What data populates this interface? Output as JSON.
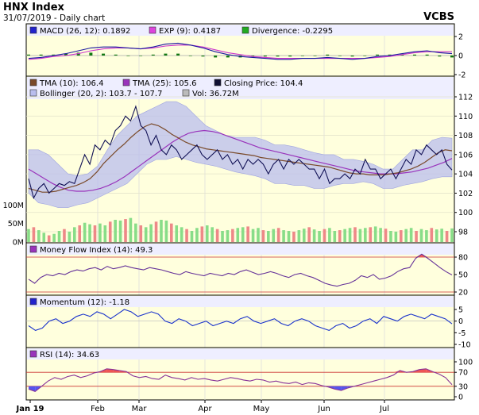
{
  "header": {
    "title": "HNX Index",
    "subtitle": "31/07/2019 - Daily chart",
    "brand": "VCBS"
  },
  "colors": {
    "panel_bg": "#ffffdd",
    "legend_bg": "#eeeeff",
    "macd": "#1a1aa0",
    "macd_signal": "#cc33cc",
    "divergence": "#117711",
    "tma10": "#7a4a2a",
    "tma25": "#9933bb",
    "close": "#111155",
    "bollinger_band": "#b9bdee",
    "vol_up": "#88dd88",
    "vol_down": "#ee8888",
    "mfi": "#663399",
    "momentum": "#1a33cc",
    "rsi": "#883399",
    "overbought_fill": "#ee5555",
    "oversold_fill": "#5555ee",
    "level_line": "#cc3333"
  },
  "x_axis_labels": [
    "Jan 19",
    "Feb",
    "Mar",
    "Apr",
    "May",
    "Jun",
    "Jul"
  ],
  "chart_data": [
    {
      "type": "line",
      "panel": "MACD",
      "legend": [
        {
          "label": "MACD (26, 12): 0.1892",
          "icon": "blue-square"
        },
        {
          "label": "EXP (9): 0.4187",
          "icon": "magenta-square"
        },
        {
          "label": "Divergence: -0.2295",
          "icon": "green-square"
        }
      ],
      "ylim": [
        -2,
        2
      ],
      "yticks": [
        "2",
        "0",
        "-2"
      ],
      "series": [
        {
          "name": "MACD (26, 12)",
          "values": [
            -0.3,
            -0.2,
            0.0,
            0.2,
            0.5,
            0.8,
            0.9,
            0.9,
            0.8,
            0.7,
            0.9,
            1.2,
            1.3,
            1.1,
            0.8,
            0.4,
            0.1,
            -0.1,
            -0.2,
            -0.3,
            -0.4,
            -0.4,
            -0.3,
            -0.3,
            -0.2,
            -0.3,
            -0.4,
            -0.3,
            -0.1,
            0.0,
            0.2,
            0.4,
            0.5,
            0.3,
            0.2
          ]
        },
        {
          "name": "EXP (9)",
          "values": [
            -0.4,
            -0.3,
            -0.1,
            0.0,
            0.2,
            0.5,
            0.7,
            0.8,
            0.8,
            0.7,
            0.8,
            1.0,
            1.1,
            1.1,
            0.9,
            0.6,
            0.3,
            0.1,
            -0.1,
            -0.2,
            -0.3,
            -0.3,
            -0.3,
            -0.3,
            -0.3,
            -0.3,
            -0.3,
            -0.3,
            -0.2,
            -0.1,
            0.1,
            0.3,
            0.4,
            0.4,
            0.4
          ]
        },
        {
          "name": "Divergence",
          "values": [
            0.1,
            0.1,
            0.1,
            0.2,
            0.3,
            0.3,
            0.2,
            0.1,
            0.0,
            0.0,
            0.1,
            0.2,
            0.2,
            0.0,
            -0.1,
            -0.2,
            -0.2,
            -0.2,
            -0.1,
            -0.1,
            -0.1,
            -0.1,
            0.0,
            0.0,
            0.1,
            0.0,
            -0.1,
            0.0,
            0.1,
            0.1,
            0.1,
            0.1,
            0.1,
            -0.1,
            -0.2
          ]
        }
      ]
    },
    {
      "type": "line",
      "panel": "Price",
      "legend": [
        {
          "label": "TMA (10): 106.4",
          "icon": "brown-square"
        },
        {
          "label": "TMA (25): 105.6",
          "icon": "purple-square"
        },
        {
          "label": "Closing Price: 104.4",
          "icon": "navy-square"
        },
        {
          "label": "Bollinger (20, 2): 103.7 - 107.7",
          "icon": "lavender-square"
        },
        {
          "label": "Vol: 36.72M",
          "icon": "gray-square"
        }
      ],
      "ylim": [
        98,
        112
      ],
      "yticks": [
        "112",
        "110",
        "108",
        "106",
        "104",
        "102",
        "100",
        "98"
      ],
      "volume_ticks": [
        "100M",
        "50M",
        "0M"
      ],
      "volume_max_millions": 150,
      "series": [
        {
          "name": "Closing Price",
          "values": [
            103.5,
            101.5,
            102.5,
            103.0,
            102.0,
            102.5,
            103.0,
            102.8,
            103.2,
            103.0,
            104.5,
            106.0,
            105.0,
            107.0,
            106.5,
            107.5,
            107.0,
            108.5,
            109.0,
            110.0,
            109.5,
            111.0,
            109.0,
            108.5,
            107.0,
            108.0,
            106.5,
            106.0,
            107.0,
            106.5,
            105.5,
            106.0,
            106.5,
            107.0,
            106.0,
            105.5,
            106.0,
            106.5,
            105.5,
            106.0,
            105.0,
            105.5,
            104.5,
            105.5,
            105.0,
            105.5,
            105.0,
            104.0,
            105.0,
            105.5,
            104.5,
            105.5,
            105.0,
            105.5,
            105.0,
            104.5,
            104.5,
            103.5,
            104.5,
            103.0,
            103.5,
            103.5,
            104.0,
            103.5,
            104.5,
            104.0,
            105.5,
            104.5,
            104.5,
            103.5,
            104.0,
            104.5,
            103.5,
            104.5,
            105.5,
            105.0,
            106.5,
            106.0,
            107.0,
            106.5,
            106.0,
            106.5,
            105.0,
            104.4
          ]
        },
        {
          "name": "TMA (10)",
          "values": [
            102.5,
            102.3,
            102.1,
            102.1,
            102.2,
            102.4,
            102.6,
            102.8,
            103.1,
            103.5,
            104.2,
            105.1,
            105.8,
            106.5,
            107.1,
            107.8,
            108.4,
            108.9,
            109.2,
            109.0,
            108.6,
            108.1,
            107.7,
            107.3,
            107.0,
            106.8,
            106.6,
            106.5,
            106.4,
            106.3,
            106.2,
            106.1,
            106.0,
            105.9,
            105.7,
            105.6,
            105.5,
            105.4,
            105.3,
            105.2,
            105.1,
            105.0,
            104.9,
            104.8,
            104.7,
            104.5,
            104.3,
            104.1,
            104.0,
            104.0,
            103.9,
            103.9,
            103.9,
            104.0,
            104.1,
            104.3,
            104.5,
            104.8,
            105.2,
            105.7,
            106.2,
            106.5,
            106.4
          ]
        },
        {
          "name": "TMA (25)",
          "values": [
            104.5,
            104.0,
            103.5,
            103.0,
            102.6,
            102.3,
            102.2,
            102.2,
            102.3,
            102.5,
            102.8,
            103.2,
            103.7,
            104.3,
            104.9,
            105.5,
            106.1,
            106.7,
            107.3,
            107.8,
            108.2,
            108.4,
            108.5,
            108.4,
            108.2,
            107.9,
            107.6,
            107.3,
            107.0,
            106.7,
            106.5,
            106.3,
            106.1,
            105.9,
            105.7,
            105.5,
            105.3,
            105.1,
            104.9,
            104.7,
            104.5,
            104.3,
            104.2,
            104.1,
            104.0,
            104.0,
            104.0,
            104.1,
            104.2,
            104.4,
            104.6,
            104.9,
            105.2,
            105.6
          ]
        },
        {
          "name": "Bollinger (20, 2)",
          "upper": [
            106.5,
            106.5,
            106.0,
            105.0,
            104.0,
            103.8,
            104.0,
            104.8,
            106.5,
            108.0,
            109.0,
            110.0,
            110.5,
            111.0,
            111.5,
            111.5,
            111.0,
            110.0,
            109.0,
            108.5,
            108.0,
            107.8,
            107.8,
            107.8,
            107.5,
            107.0,
            107.0,
            106.8,
            106.5,
            106.2,
            106.0,
            106.0,
            105.5,
            105.5,
            105.3,
            105.0,
            104.5,
            104.5,
            105.5,
            106.5,
            106.5,
            107.5,
            107.8,
            107.7
          ],
          "lower": [
            102.0,
            101.0,
            100.8,
            100.5,
            100.5,
            100.8,
            101.0,
            101.5,
            102.0,
            102.5,
            103.0,
            104.0,
            105.0,
            105.5,
            105.5,
            105.8,
            105.5,
            105.2,
            105.0,
            104.8,
            104.5,
            104.2,
            104.0,
            103.8,
            103.5,
            103.0,
            103.0,
            102.8,
            102.8,
            102.5,
            102.5,
            102.8,
            103.0,
            103.0,
            103.2,
            103.0,
            102.5,
            102.5,
            102.8,
            103.0,
            103.2,
            103.5,
            103.7,
            103.7
          ]
        },
        {
          "name": "Vol",
          "values": [
            35,
            40,
            32,
            25,
            18,
            22,
            30,
            35,
            28,
            40,
            45,
            52,
            48,
            45,
            50,
            45,
            55,
            60,
            58,
            62,
            65,
            50,
            45,
            40,
            48,
            55,
            60,
            58,
            50,
            45,
            40,
            35,
            30,
            38,
            42,
            45,
            40,
            35,
            30,
            32,
            35,
            38,
            40,
            42,
            35,
            38,
            32,
            30,
            35,
            38,
            32,
            30,
            28,
            32,
            36,
            40,
            34,
            30,
            35,
            38,
            30,
            32,
            35,
            38,
            40,
            35,
            38,
            40,
            42,
            38,
            36,
            30,
            28,
            32,
            35,
            38,
            30,
            35,
            32,
            38,
            34,
            36,
            30,
            36.72
          ]
        }
      ]
    },
    {
      "type": "line",
      "panel": "MFI",
      "legend": [
        {
          "label": "Money Flow Index (14): 49.3",
          "icon": "purple-square"
        }
      ],
      "ylim": [
        20,
        80
      ],
      "yticks": [
        "80",
        "50",
        "20"
      ],
      "levels": [
        80,
        20
      ],
      "series": [
        {
          "name": "Money Flow Index (14)",
          "values": [
            42,
            35,
            45,
            50,
            48,
            52,
            50,
            55,
            58,
            56,
            60,
            62,
            58,
            64,
            60,
            62,
            65,
            62,
            60,
            58,
            62,
            60,
            58,
            55,
            52,
            50,
            55,
            52,
            50,
            48,
            52,
            50,
            48,
            52,
            50,
            55,
            58,
            54,
            50,
            52,
            55,
            52,
            48,
            45,
            50,
            52,
            48,
            45,
            40,
            35,
            32,
            30,
            33,
            35,
            40,
            48,
            45,
            50,
            42,
            44,
            48,
            55,
            60,
            62,
            78,
            85,
            78,
            70,
            62,
            55,
            49.3
          ]
        }
      ]
    },
    {
      "type": "line",
      "panel": "Momentum",
      "legend": [
        {
          "label": "Momentum (12): -1.18",
          "icon": "blue-square"
        }
      ],
      "ylim": [
        -10,
        5
      ],
      "yticks": [
        "5",
        "0",
        "-5",
        "-10"
      ],
      "series": [
        {
          "name": "Momentum (12)",
          "values": [
            -2,
            -4,
            -3,
            0,
            1,
            -1,
            0,
            2,
            3,
            2,
            4,
            3,
            1,
            3,
            5,
            4,
            2,
            3,
            4,
            3,
            0,
            -1,
            1,
            0,
            -2,
            -1,
            0,
            -2,
            -1,
            0,
            -1,
            1,
            2,
            0,
            -1,
            0,
            1,
            -1,
            -2,
            0,
            1,
            0,
            -2,
            -3,
            -4,
            -2,
            -1,
            -3,
            -2,
            0,
            1,
            -1,
            2,
            1,
            0,
            2,
            3,
            2,
            1,
            3,
            2,
            1,
            -1.18
          ]
        }
      ]
    },
    {
      "type": "line",
      "panel": "RSI",
      "legend": [
        {
          "label": "RSI (14): 34.63",
          "icon": "purple-square"
        }
      ],
      "ylim": [
        0,
        100
      ],
      "yticks": [
        "100",
        "70",
        "30",
        "0"
      ],
      "levels": [
        70,
        30
      ],
      "series": [
        {
          "name": "RSI (14)",
          "values": [
            22,
            15,
            30,
            45,
            55,
            50,
            58,
            62,
            55,
            60,
            68,
            72,
            80,
            78,
            75,
            72,
            60,
            55,
            58,
            52,
            50,
            62,
            55,
            52,
            48,
            55,
            50,
            52,
            48,
            45,
            50,
            55,
            52,
            48,
            45,
            50,
            48,
            42,
            45,
            40,
            38,
            42,
            35,
            40,
            38,
            32,
            28,
            22,
            18,
            25,
            30,
            35,
            40,
            45,
            50,
            55,
            62,
            75,
            70,
            72,
            78,
            80,
            72,
            65,
            55,
            34.63
          ]
        }
      ]
    }
  ]
}
